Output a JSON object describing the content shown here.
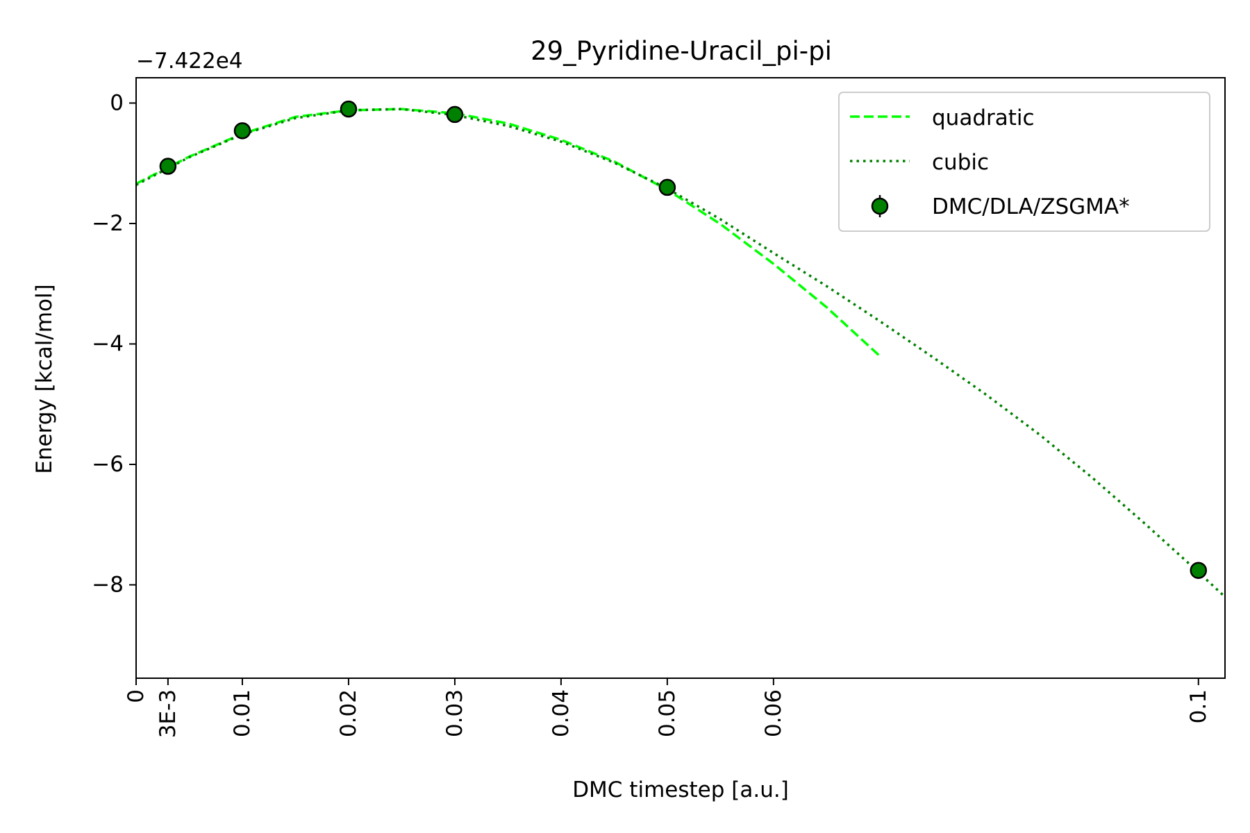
{
  "chart_data": {
    "type": "scatter",
    "title": "29_Pyridine-Uracil_pi-pi",
    "offset_text": "−7.422e4",
    "xlabel": "DMC timestep [a.u.]",
    "ylabel": "Energy [kcal/mol]",
    "xlim": [
      0,
      0.1025
    ],
    "ylim": [
      -9.55,
      0.42
    ],
    "x_ticks": [
      {
        "value": 0,
        "label": "0"
      },
      {
        "value": 0.003,
        "label": "3E-3"
      },
      {
        "value": 0.01,
        "label": "0.01"
      },
      {
        "value": 0.02,
        "label": "0.02"
      },
      {
        "value": 0.03,
        "label": "0.03"
      },
      {
        "value": 0.04,
        "label": "0.04"
      },
      {
        "value": 0.05,
        "label": "0.05"
      },
      {
        "value": 0.06,
        "label": "0.06"
      },
      {
        "value": 0.1,
        "label": "0.1"
      }
    ],
    "y_ticks": [
      {
        "value": 0,
        "label": "0"
      },
      {
        "value": -2,
        "label": "−2"
      },
      {
        "value": -4,
        "label": "−4"
      },
      {
        "value": -6,
        "label": "−6"
      },
      {
        "value": -8,
        "label": "−8"
      }
    ],
    "grid": false,
    "legend_position": "top-right",
    "series": [
      {
        "name": "quadratic",
        "kind": "line",
        "style": "dashed",
        "color": "#00ff00",
        "x": [
          0,
          0.005,
          0.01,
          0.015,
          0.02,
          0.025,
          0.03,
          0.035,
          0.04,
          0.045,
          0.05,
          0.055,
          0.06,
          0.065,
          0.07
        ],
        "y": [
          -1.34,
          -0.89,
          -0.51,
          -0.23,
          -0.12,
          -0.1,
          -0.17,
          -0.34,
          -0.61,
          -0.97,
          -1.44,
          -2.01,
          -2.67,
          -3.39,
          -4.2
        ]
      },
      {
        "name": "cubic",
        "kind": "line",
        "style": "dotted",
        "color": "#008000",
        "x": [
          0,
          0.005,
          0.01,
          0.015,
          0.02,
          0.025,
          0.03,
          0.035,
          0.04,
          0.045,
          0.05,
          0.055,
          0.06,
          0.065,
          0.07,
          0.075,
          0.08,
          0.085,
          0.09,
          0.095,
          0.1,
          0.1025
        ],
        "y": [
          -1.36,
          -0.9,
          -0.52,
          -0.25,
          -0.12,
          -0.1,
          -0.2,
          -0.38,
          -0.64,
          -0.99,
          -1.42,
          -1.93,
          -2.49,
          -3.04,
          -3.62,
          -4.22,
          -4.84,
          -5.5,
          -6.22,
          -6.99,
          -7.79,
          -8.2
        ]
      },
      {
        "name": "DMC/DLA/ZSGMA*",
        "kind": "points",
        "color": "#008000",
        "x": [
          0.003,
          0.01,
          0.02,
          0.03,
          0.05,
          0.1
        ],
        "y": [
          -1.05,
          -0.46,
          -0.1,
          -0.19,
          -1.4,
          -7.76
        ]
      }
    ]
  }
}
